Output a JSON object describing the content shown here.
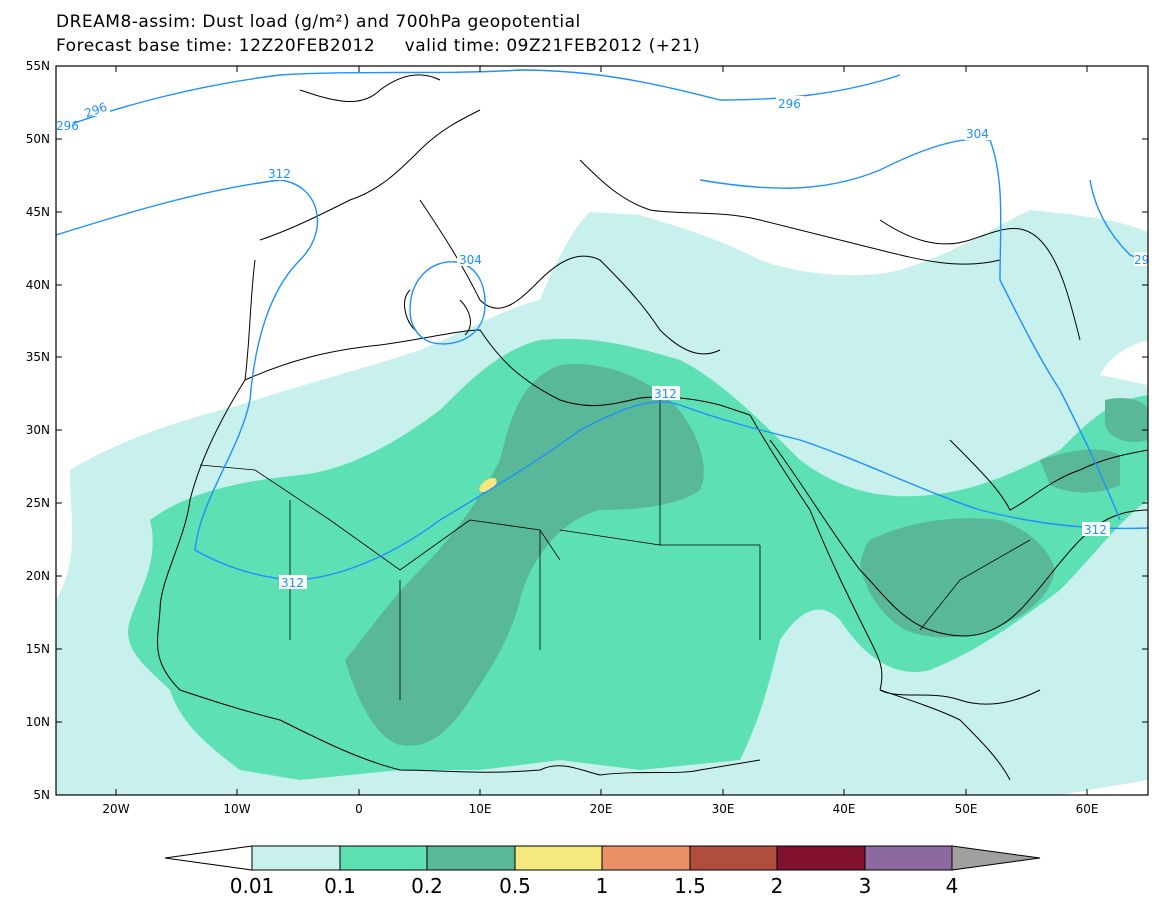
{
  "title": {
    "line1": "DREAM8-assim: Dust load (g/m²) and 700hPa geopotential",
    "line2": "Forecast base time: 12Z20FEB2012     valid time: 09Z21FEB2012 (+21)"
  },
  "axes": {
    "lat_labels": [
      "55N",
      "50N",
      "45N",
      "40N",
      "35N",
      "30N",
      "25N",
      "20N",
      "15N",
      "10N",
      "5N"
    ],
    "lon_labels": [
      "20W",
      "10W",
      "0",
      "10E",
      "20E",
      "30E",
      "40E",
      "50E",
      "60E"
    ]
  },
  "contours": {
    "labels": [
      "296",
      "296",
      "296",
      "304",
      "304",
      "312",
      "312",
      "312",
      "312",
      "29"
    ],
    "color": "#1e90ff"
  },
  "colorbar": {
    "labels": [
      "0.01",
      "0.1",
      "0.2",
      "0.5",
      "1",
      "1.5",
      "2",
      "3",
      "4"
    ],
    "colors": [
      "#c8f0ec",
      "#5ee0b5",
      "#58b898",
      "#f5e87e",
      "#e89068",
      "#b04e3e",
      "#80102e",
      "#8c6aa0"
    ],
    "under_color": "#ffffff",
    "over_color": "#a0a0a0"
  },
  "colors": {
    "coast": "#000000",
    "light": "#c8f0ec",
    "medium": "#5ee0b5",
    "dark": "#58b898",
    "yellow": "#f5e87e"
  }
}
